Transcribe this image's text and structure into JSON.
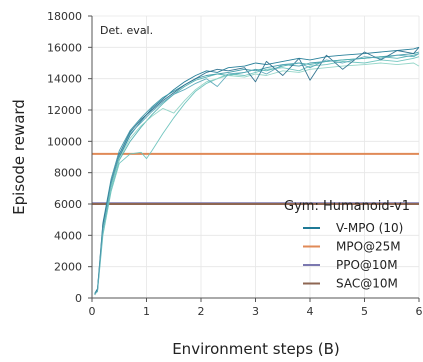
{
  "chart_data": {
    "type": "line",
    "annotation": "Det. eval.",
    "xlabel": "Environment steps (B)",
    "ylabel": "Episode reward",
    "xlim": [
      0,
      6
    ],
    "ylim": [
      0,
      18000
    ],
    "xticks": [
      0,
      1,
      2,
      3,
      4,
      5,
      6
    ],
    "yticks": [
      0,
      2000,
      4000,
      6000,
      8000,
      10000,
      12000,
      14000,
      16000,
      18000
    ],
    "grid": true,
    "legend": {
      "title": "Gym: Humanoid-v1",
      "placement": "lower-right",
      "entries": [
        {
          "label": "V-MPO (10)",
          "color": "#1f7a96"
        },
        {
          "label": "MPO@25M",
          "color": "#e08a57"
        },
        {
          "label": "PPO@10M",
          "color": "#7b78b0"
        },
        {
          "label": "SAC@10M",
          "color": "#8e6652"
        }
      ]
    },
    "baselines": [
      {
        "label": "MPO@25M",
        "value": 9200,
        "color": "#e08a57"
      },
      {
        "label": "PPO@10M",
        "value": 6050,
        "color": "#7b78b0"
      },
      {
        "label": "SAC@10M",
        "value": 6000,
        "color": "#8e6652"
      }
    ],
    "series": [
      {
        "color": "#1f7a96",
        "x": [
          0.05,
          0.1,
          0.2,
          0.35,
          0.5,
          0.7,
          0.9,
          1.1,
          1.3,
          1.5,
          1.7,
          1.9,
          2.1,
          2.3,
          2.5,
          2.8,
          3.0,
          3.2,
          3.5,
          3.8,
          4.0,
          4.3,
          4.6,
          5.0,
          5.3,
          5.6,
          5.9,
          6.0
        ],
        "y": [
          200,
          500,
          4500,
          7200,
          9000,
          10400,
          11300,
          12100,
          12700,
          13300,
          13800,
          14200,
          14500,
          14400,
          14700,
          14800,
          15000,
          14900,
          15100,
          15300,
          15200,
          15400,
          15500,
          15600,
          15700,
          15800,
          15900,
          16000
        ]
      },
      {
        "color": "#3a97a6",
        "x": [
          0.05,
          0.1,
          0.2,
          0.35,
          0.5,
          0.7,
          0.9,
          1.1,
          1.3,
          1.5,
          1.7,
          1.9,
          2.1,
          2.3,
          2.5,
          2.8,
          3.0,
          3.2,
          3.5,
          3.8,
          4.0,
          4.3,
          4.6,
          5.0,
          5.3,
          5.6,
          5.9,
          6.0
        ],
        "y": [
          300,
          600,
          4800,
          7600,
          9400,
          10700,
          11500,
          12200,
          12800,
          13200,
          13600,
          14000,
          14200,
          14300,
          14400,
          14600,
          14500,
          14700,
          14900,
          14800,
          15000,
          15100,
          15200,
          15300,
          15400,
          15500,
          15600,
          15700
        ]
      },
      {
        "color": "#4fb0b0",
        "x": [
          0.05,
          0.1,
          0.2,
          0.35,
          0.5,
          0.7,
          0.9,
          1.1,
          1.3,
          1.5,
          1.7,
          1.9,
          2.1,
          2.3,
          2.5,
          2.8,
          3.0,
          3.2,
          3.5,
          3.8,
          4.0,
          4.3,
          4.6,
          5.0,
          5.3,
          5.6,
          5.9,
          6.0
        ],
        "y": [
          200,
          500,
          4300,
          7000,
          8800,
          10000,
          10900,
          11700,
          12400,
          13000,
          13500,
          13900,
          14100,
          14300,
          14200,
          14400,
          14600,
          14500,
          14800,
          15000,
          14900,
          15100,
          15200,
          15300,
          15400,
          15300,
          15500,
          15600
        ]
      },
      {
        "color": "#6cc3bd",
        "x": [
          0.05,
          0.1,
          0.2,
          0.35,
          0.5,
          0.7,
          0.9,
          1.0,
          1.1,
          1.3,
          1.5,
          1.7,
          1.9,
          2.1,
          2.3,
          2.5,
          2.8,
          3.0,
          3.2,
          3.5,
          3.8,
          4.0,
          4.3,
          4.6,
          5.0,
          5.3,
          5.6,
          5.9,
          6.0
        ],
        "y": [
          300,
          400,
          4000,
          6800,
          8600,
          9200,
          9300,
          8900,
          9400,
          10500,
          11500,
          12400,
          13200,
          13700,
          14000,
          14300,
          14200,
          14400,
          14600,
          14700,
          14500,
          14800,
          14900,
          15100,
          15000,
          15200,
          15100,
          15300,
          15400
        ]
      },
      {
        "color": "#90d4c6",
        "x": [
          0.05,
          0.1,
          0.2,
          0.35,
          0.5,
          0.7,
          0.9,
          1.1,
          1.3,
          1.5,
          1.7,
          1.9,
          2.1,
          2.3,
          2.5,
          2.8,
          3.0,
          3.2,
          3.5,
          3.8,
          4.0,
          4.3,
          4.6,
          5.0,
          5.3,
          5.6,
          5.9,
          6.0
        ],
        "y": [
          200,
          500,
          4600,
          7100,
          8900,
          10200,
          11000,
          11600,
          12100,
          11800,
          12600,
          13300,
          13800,
          14000,
          14200,
          14100,
          14300,
          14200,
          14500,
          14400,
          14600,
          14700,
          14800,
          14900,
          15000,
          14900,
          15000,
          14800
        ]
      },
      {
        "color": "#2b6f8c",
        "x": [
          0.05,
          0.1,
          0.2,
          0.35,
          0.5,
          0.7,
          0.9,
          1.1,
          1.3,
          1.5,
          1.7,
          1.9,
          2.1,
          2.3,
          2.5,
          2.8,
          3.0,
          3.2,
          3.5,
          3.8,
          4.0,
          4.3,
          4.6,
          5.0,
          5.3,
          5.6,
          5.9,
          6.0
        ],
        "y": [
          250,
          550,
          4700,
          7400,
          9200,
          10600,
          11400,
          12000,
          12600,
          13100,
          13600,
          14000,
          14400,
          14600,
          14500,
          14700,
          13800,
          15100,
          14200,
          15300,
          13900,
          15500,
          14600,
          15700,
          15200,
          15800,
          15600,
          16000
        ]
      },
      {
        "color": "#5aa9b8",
        "x": [
          0.05,
          0.1,
          0.2,
          0.35,
          0.5,
          0.7,
          0.9,
          1.1,
          1.3,
          1.5,
          1.7,
          1.9,
          2.1,
          2.3,
          2.5,
          2.8,
          3.0,
          3.2,
          3.5,
          3.8,
          4.0,
          4.3,
          4.6,
          5.0,
          5.3,
          5.6,
          5.9,
          6.0
        ],
        "y": [
          250,
          450,
          4400,
          7300,
          9100,
          10500,
          11200,
          11900,
          12500,
          13000,
          13300,
          13700,
          14000,
          13500,
          14300,
          14400,
          14600,
          14300,
          14900,
          15000,
          14700,
          15200,
          15000,
          15400,
          15300,
          15500,
          15400,
          15600
        ]
      }
    ]
  }
}
